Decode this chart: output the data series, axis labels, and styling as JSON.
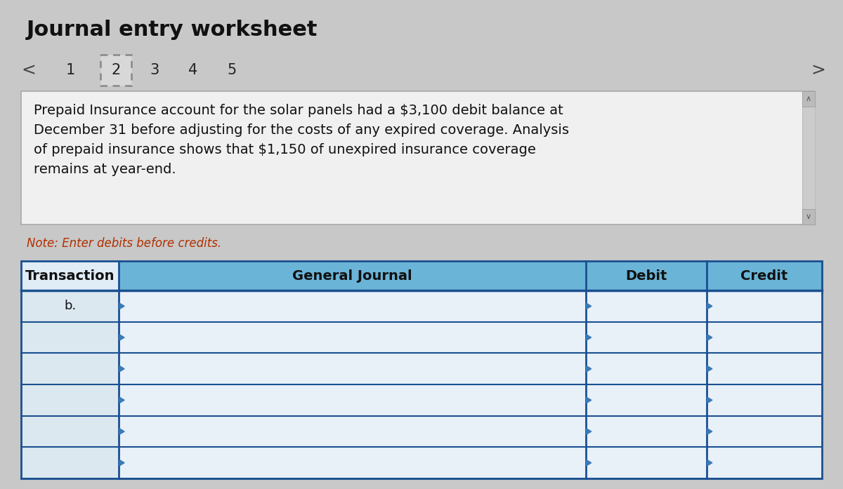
{
  "title": "Journal entry worksheet",
  "page_numbers": [
    "1",
    "2",
    "3",
    "4",
    "5"
  ],
  "active_page": "2",
  "description": "Prepaid Insurance account for the solar panels had a $3,100 debit balance at\nDecember 31 before adjusting for the costs of any expired coverage. Analysis\nof prepaid insurance shows that $1,150 of unexpired insurance coverage\nremains at year-end.",
  "note": "Note: Enter debits before credits.",
  "col_headers": [
    "Transaction",
    "General Journal",
    "Debit",
    "Credit"
  ],
  "transaction_label": "b.",
  "num_data_rows": 6,
  "bg_color": "#c8c8c8",
  "header_bg": "#6ab4d8",
  "cell_bg": "#e8f0f8",
  "trans_cell_bg": "#dde8f0",
  "description_bg": "#f0f0f0",
  "border_color": "#3a7ab8",
  "dark_border": "#1a5090",
  "text_color": "#111111",
  "note_color": "#b03000",
  "title_fontsize": 22,
  "header_fontsize": 14,
  "body_fontsize": 13,
  "note_fontsize": 12,
  "page_num_fontsize": 15,
  "arrow_color": "#3a7ab8"
}
